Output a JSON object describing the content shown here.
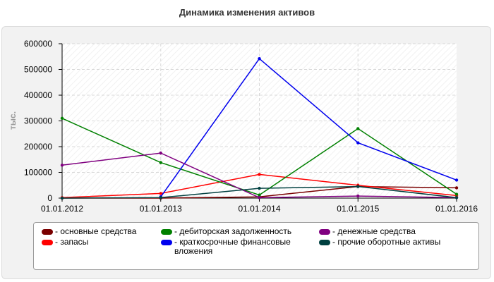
{
  "chart_data": {
    "type": "line",
    "title": "Динамика изменения активов",
    "ylabel": "тыс.",
    "xlabel": "",
    "categories": [
      "01.01.2012",
      "01.01.2013",
      "01.01.2014",
      "01.01.2015",
      "01.01.2016"
    ],
    "ylim": [
      0,
      600000
    ],
    "yticks": [
      0,
      100000,
      200000,
      300000,
      400000,
      500000,
      600000
    ],
    "grid": true,
    "legend_position": "bottom",
    "series": [
      {
        "name": "- основные средства",
        "color": "#7a0000",
        "values": [
          0,
          0,
          5000,
          45000,
          40000
        ]
      },
      {
        "name": "- запасы",
        "color": "#ff0000",
        "values": [
          2000,
          18000,
          92000,
          50000,
          10000
        ]
      },
      {
        "name": "- дебиторская задолженность",
        "color": "#008000",
        "values": [
          310000,
          138000,
          12000,
          270000,
          15000
        ]
      },
      {
        "name": "- краткосрочные финансовые вложения",
        "color": "#0000ee",
        "values": [
          null,
          5000,
          542000,
          215000,
          70000
        ]
      },
      {
        "name": "- денежные средства",
        "color": "#800080",
        "values": [
          128000,
          175000,
          2000,
          8000,
          2000
        ]
      },
      {
        "name": "- прочие оборотные активы",
        "color": "#004040",
        "values": [
          0,
          2000,
          38000,
          45000,
          2000
        ]
      }
    ]
  }
}
